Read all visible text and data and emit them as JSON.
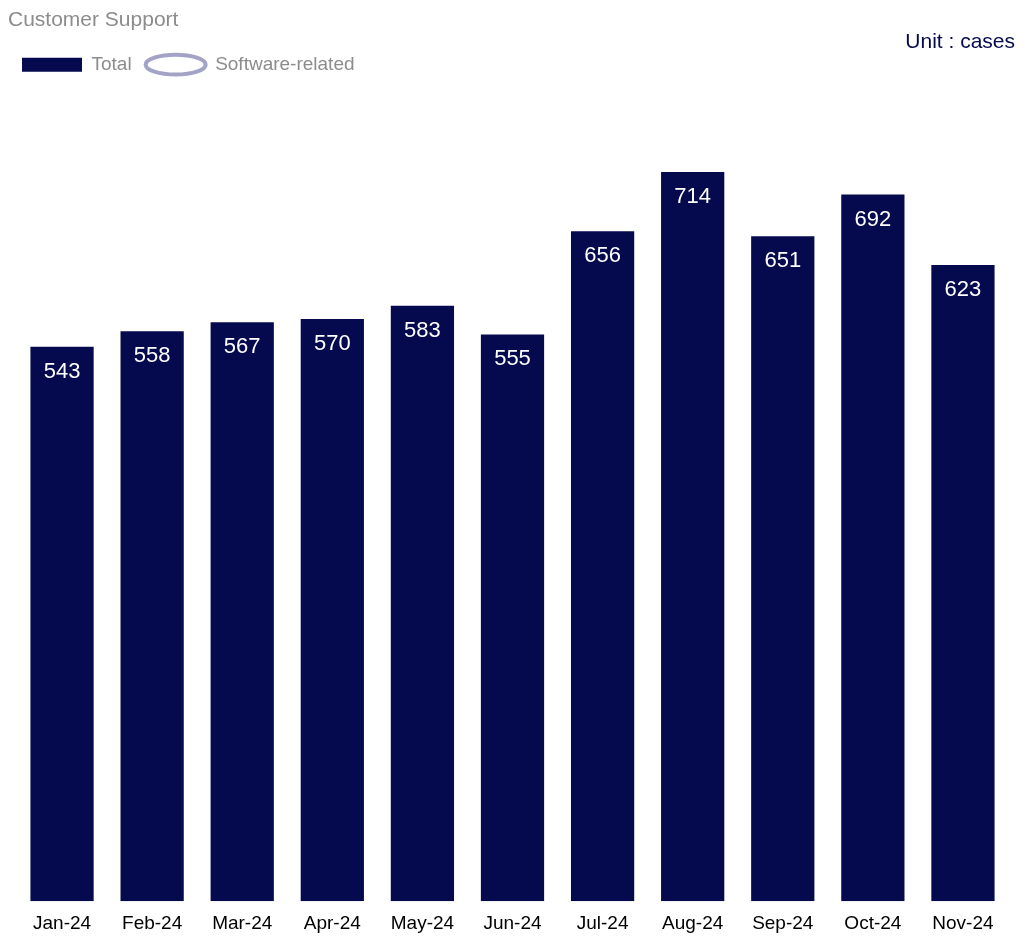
{
  "chart_data": {
    "type": "bar",
    "title": "Customer Support",
    "annotations": [
      "Unit : cases"
    ],
    "categories": [
      "Jan-24",
      "Feb-24",
      "Mar-24",
      "Apr-24",
      "May-24",
      "Jun-24",
      "Jul-24",
      "Aug-24",
      "Sep-24",
      "Oct-24",
      "Nov-24"
    ],
    "series": [
      {
        "name": "Total",
        "color": "#050a4e",
        "values": [
          543,
          558,
          567,
          570,
          583,
          555,
          656,
          714,
          651,
          692,
          623
        ]
      },
      {
        "name": "Software-related",
        "type": "line",
        "color": "#a3a3c8",
        "values": [
          null,
          null,
          null,
          null,
          null,
          null,
          null,
          null,
          null,
          null,
          null
        ]
      }
    ],
    "data_labels": true,
    "legend": "top left",
    "grid": false,
    "marker": "circle"
  }
}
